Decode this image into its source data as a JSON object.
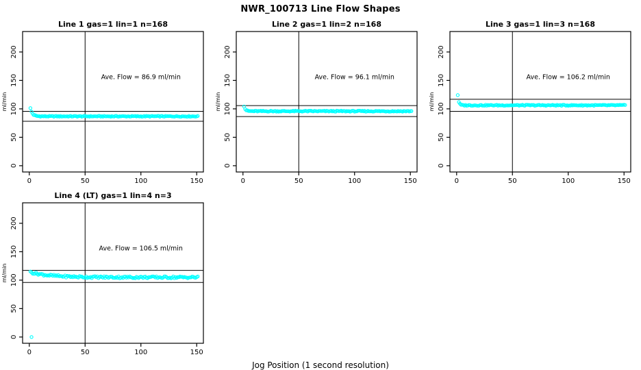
{
  "page": {
    "title": "NWR_100713  Line Flow Shapes",
    "xlabel": "Jog Position (1 second resolution)"
  },
  "style": {
    "background": "#FFFFFF",
    "point_color": "#00FFFF",
    "axis_color": "#000000",
    "text_color": "#000000"
  },
  "chart_data": [
    {
      "type": "scatter",
      "title": "Line 1 gas=1 lin=1 n=168",
      "n": 168,
      "ave_flow": 86.9,
      "annotation": "Ave. Flow =  86.9  ml/min",
      "ylabel": "ml/min",
      "xlim": [
        -6,
        156
      ],
      "ylim": [
        -11,
        236
      ],
      "xticks": [
        0,
        50,
        100,
        150
      ],
      "yticks": [
        0,
        50,
        100,
        150,
        200
      ],
      "vline_x": 50,
      "hlines_y": [
        95.6,
        78.2
      ],
      "annotation_at": {
        "x": 100,
        "y": 152
      },
      "series": {
        "name": "line-1-flow",
        "marker": "open-circle",
        "color": "#00FFFF",
        "x_from": 1,
        "x_to": 151,
        "x_step": 1,
        "steady_mean": 86.9,
        "decay_amp": 14,
        "decay_tau": 1.8,
        "jitter": 0.8,
        "outliers": []
      }
    },
    {
      "type": "scatter",
      "title": "Line 2 gas=1 lin=2 n=168",
      "n": 168,
      "ave_flow": 96.1,
      "annotation": "Ave. Flow =  96.1  ml/min",
      "ylabel": "ml/min",
      "xlim": [
        -6,
        156
      ],
      "ylim": [
        -11,
        236
      ],
      "xticks": [
        0,
        50,
        100,
        150
      ],
      "yticks": [
        0,
        50,
        100,
        150,
        200
      ],
      "vline_x": 50,
      "hlines_y": [
        105.7,
        86.5
      ],
      "annotation_at": {
        "x": 100,
        "y": 152
      },
      "series": {
        "name": "line-2-flow",
        "marker": "open-circle",
        "color": "#00FFFF",
        "x_from": 1,
        "x_to": 151,
        "x_step": 1,
        "steady_mean": 95.9,
        "decay_amp": 9,
        "decay_tau": 1.2,
        "jitter": 0.9,
        "outliers": []
      }
    },
    {
      "type": "scatter",
      "title": "Line 3 gas=1 lin=3 n=168",
      "n": 168,
      "ave_flow": 106.2,
      "annotation": "Ave. Flow =  106.2  ml/min",
      "ylabel": "ml/min",
      "xlim": [
        -6,
        156
      ],
      "ylim": [
        -11,
        236
      ],
      "xticks": [
        0,
        50,
        100,
        150
      ],
      "yticks": [
        0,
        50,
        100,
        150,
        200
      ],
      "vline_x": 50,
      "hlines_y": [
        116.8,
        95.6
      ],
      "annotation_at": {
        "x": 100,
        "y": 152
      },
      "series": {
        "name": "line-3-flow",
        "marker": "open-circle",
        "color": "#00FFFF",
        "x_from": 1,
        "x_to": 151,
        "x_step": 1,
        "steady_mean": 106.3,
        "decay_amp": 18,
        "decay_tau": 0.9,
        "jitter": 0.9,
        "outliers": []
      }
    },
    {
      "type": "scatter",
      "title": "Line 4 (LT) gas=1 lin=4 n=3",
      "n": 3,
      "ave_flow": 106.5,
      "annotation": "Ave. Flow =  106.5  ml/min",
      "ylabel": "ml/min",
      "xlim": [
        -6,
        156
      ],
      "ylim": [
        -11,
        236
      ],
      "xticks": [
        0,
        50,
        100,
        150
      ],
      "yticks": [
        0,
        50,
        100,
        150,
        200
      ],
      "vline_x": 50,
      "hlines_y": [
        117.2,
        95.9
      ],
      "annotation_at": {
        "x": 100,
        "y": 152
      },
      "series": {
        "name": "line-4-flow",
        "marker": "open-circle",
        "color": "#00FFFF",
        "x_from": 1,
        "x_to": 151,
        "x_step": 1,
        "steady_mean": 105.0,
        "decay_amp": 9,
        "decay_tau": 18,
        "jitter": 1.8,
        "outliers": [
          [
            2,
            0
          ]
        ]
      }
    }
  ]
}
